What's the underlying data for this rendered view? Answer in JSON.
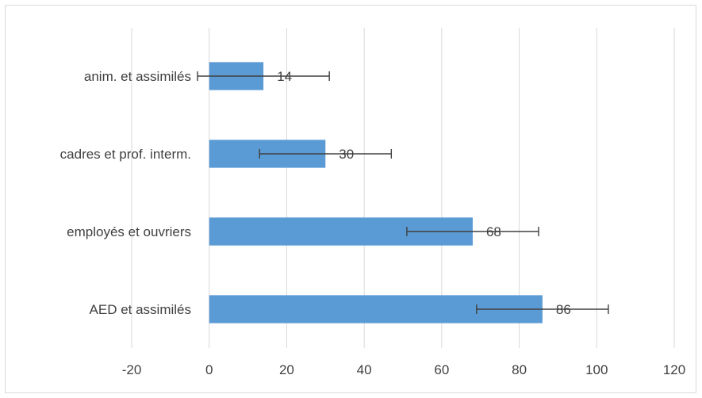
{
  "chart_data": {
    "type": "bar",
    "orientation": "horizontal",
    "categories": [
      "anim. et assimilés",
      "cadres et prof. interm.",
      "employés et ouvriers",
      "AED et assimilés"
    ],
    "values": [
      14,
      30,
      68,
      86
    ],
    "data_labels": [
      "14",
      "30",
      "68",
      "86"
    ],
    "error_minus": [
      17,
      17,
      17,
      17
    ],
    "error_plus": [
      17,
      17,
      17,
      17
    ],
    "xlim": [
      -20,
      120
    ],
    "xticks": [
      -20,
      0,
      20,
      40,
      60,
      80,
      100,
      120
    ],
    "xtick_labels": [
      "-20",
      "0",
      "20",
      "40",
      "60",
      "80",
      "100",
      "120"
    ],
    "title": "",
    "xlabel": "",
    "ylabel": "",
    "grid": "vertical",
    "legend": "none",
    "colors": {
      "bar": "#5b9bd5",
      "grid": "#d9d9d9",
      "text": "#404040",
      "error_bar": "#404040"
    }
  }
}
